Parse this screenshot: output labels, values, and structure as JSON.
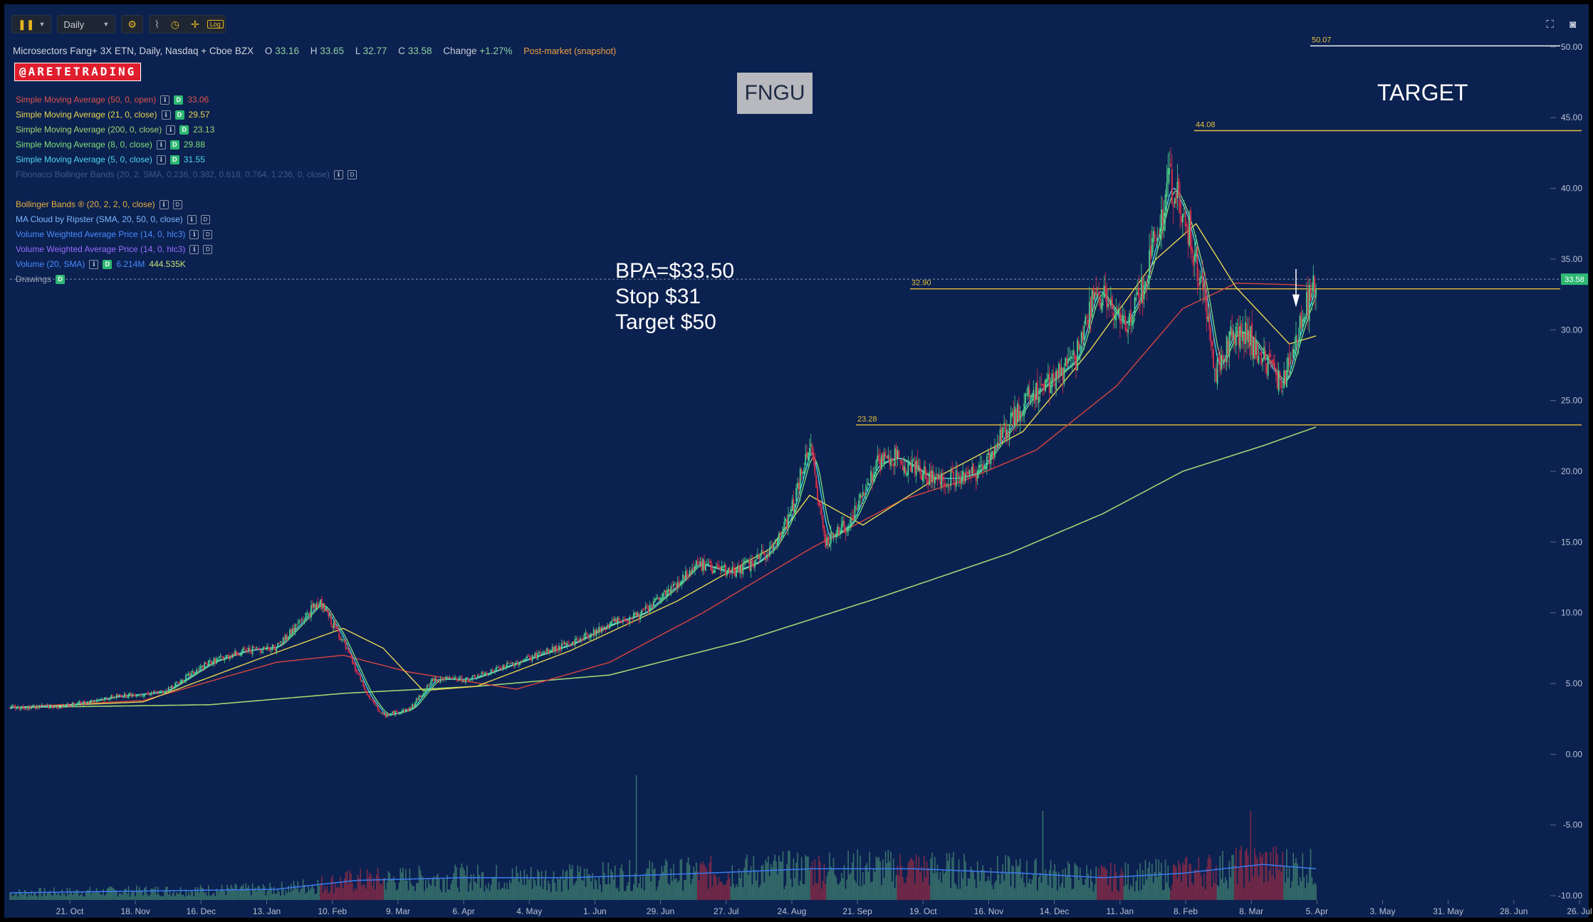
{
  "toolbar": {
    "interval": "Daily",
    "log_label": "Log"
  },
  "header": {
    "title": "Microsectors Fang+ 3X ETN, Daily, Nasdaq + Cboe BZX",
    "open_label": "O",
    "open": "33.16",
    "high_label": "H",
    "high": "33.65",
    "low_label": "L",
    "low": "32.77",
    "close_label": "C",
    "close": "33.58",
    "change_label": "Change",
    "change": "+1.27%",
    "post_market": "Post-market (snapshot)"
  },
  "brand": "@ARETETRADING",
  "legend": [
    {
      "label": "Simple Moving Average (50, 0, open)",
      "value": "33.06",
      "color": "#e0524a",
      "d": true
    },
    {
      "label": "Simple Moving Average (21, 0, close)",
      "value": "29.57",
      "color": "#e8d650",
      "d": true
    },
    {
      "label": "Simple Moving Average (200, 0, close)",
      "value": "23.13",
      "color": "#9fd672",
      "d": true
    },
    {
      "label": "Simple Moving Average (8, 0, close)",
      "value": "29.88",
      "color": "#7fe07a",
      "d": true
    },
    {
      "label": "Simple Moving Average (5, 0, close)",
      "value": "31.55",
      "color": "#4fd6f0",
      "d": true
    },
    {
      "label": "Fibonacci Bollinger Bands (20, 2, SMA, 0.236, 0.382, 0.618, 0.764, 1.236, 0, close)",
      "value": "",
      "color": "#3a5a8a",
      "d": false
    },
    {
      "label": "",
      "value": "",
      "color": "#24407a",
      "d": false
    },
    {
      "label": "Bollinger Bands ® (20, 2, 2, 0, close)",
      "value": "",
      "color": "#e8b040",
      "d": false
    },
    {
      "label": "MA Cloud by Ripster (SMA, 20, 50, 0, close)",
      "value": "",
      "color": "#7cb8ff",
      "d": false
    },
    {
      "label": "Volume Weighted Average Price (14, 0, hlc3)",
      "value": "",
      "color": "#4a8cff",
      "d": false
    },
    {
      "label": "Volume Weighted Average Price (14, 0, hlc3)",
      "value": "",
      "color": "#9a6cff",
      "d": false
    },
    {
      "label": "Volume (20, SMA)",
      "value": "6.214M",
      "value2": "444.535K",
      "color": "#4a8cff",
      "d": true
    },
    {
      "label": "Drawings",
      "value": "",
      "color": "#9aa3b5",
      "d": true
    }
  ],
  "annotations": {
    "ticker": "FNGU",
    "target_title": "TARGET",
    "plan_lines": [
      "BPA=$33.50",
      "Stop $31",
      "Target $50"
    ]
  },
  "chart_data": {
    "type": "candlestick",
    "symbol": "FNGU",
    "interval": "Daily",
    "ylim": [
      -10.5,
      51
    ],
    "y_ticks": [
      "50.00",
      "45.00",
      "40.00",
      "35.00",
      "30.00",
      "25.00",
      "20.00",
      "15.00",
      "10.00",
      "5.00",
      "0.00",
      "-5.00",
      "-10.00"
    ],
    "x_ticks": [
      "21. Oct",
      "18. Nov",
      "16. Dec",
      "13. Jan",
      "10. Feb",
      "9. Mar",
      "6. Apr",
      "4. May",
      "1. Jun",
      "29. Jun",
      "27. Jul",
      "24. Aug",
      "21. Sep",
      "19. Oct",
      "16. Nov",
      "14. Dec",
      "11. Jan",
      "8. Feb",
      "8. Mar",
      "5. Apr",
      "3. May",
      "31. May",
      "28. Jun",
      "26. Jul"
    ],
    "price_path": [
      [
        0,
        3.3
      ],
      [
        40,
        3.4
      ],
      [
        80,
        4.1
      ],
      [
        115,
        4.4
      ],
      [
        150,
        6.5
      ],
      [
        175,
        7.3
      ],
      [
        200,
        7.6
      ],
      [
        232,
        10.8
      ],
      [
        248,
        8.3
      ],
      [
        268,
        4.2
      ],
      [
        280,
        2.7
      ],
      [
        300,
        3.2
      ],
      [
        318,
        5.3
      ],
      [
        345,
        5.3
      ],
      [
        380,
        6.5
      ],
      [
        420,
        7.8
      ],
      [
        450,
        9.2
      ],
      [
        475,
        10.0
      ],
      [
        500,
        12.0
      ],
      [
        515,
        13.5
      ],
      [
        540,
        12.8
      ],
      [
        560,
        13.6
      ],
      [
        572,
        14.6
      ],
      [
        585,
        16.8
      ],
      [
        600,
        21.9
      ],
      [
        612,
        15.1
      ],
      [
        630,
        16.3
      ],
      [
        650,
        20.5
      ],
      [
        665,
        21.0
      ],
      [
        690,
        19.5
      ],
      [
        710,
        19.5
      ],
      [
        725,
        19.9
      ],
      [
        745,
        22.5
      ],
      [
        765,
        25.3
      ],
      [
        785,
        26.8
      ],
      [
        800,
        28.0
      ],
      [
        815,
        33.0
      ],
      [
        835,
        30.2
      ],
      [
        850,
        33.0
      ],
      [
        870,
        40.4
      ],
      [
        882,
        38.0
      ],
      [
        895,
        33.0
      ],
      [
        905,
        27.0
      ],
      [
        918,
        30.0
      ],
      [
        930,
        29.5
      ],
      [
        945,
        27.3
      ],
      [
        955,
        26.0
      ],
      [
        968,
        30.3
      ],
      [
        980,
        33.5
      ]
    ],
    "sma_50_path": [
      [
        0,
        3.3
      ],
      [
        100,
        3.8
      ],
      [
        200,
        6.5
      ],
      [
        250,
        7.0
      ],
      [
        300,
        5.8
      ],
      [
        380,
        4.6
      ],
      [
        450,
        6.5
      ],
      [
        520,
        10.0
      ],
      [
        600,
        14.5
      ],
      [
        670,
        18.0
      ],
      [
        720,
        19.5
      ],
      [
        770,
        21.5
      ],
      [
        830,
        26.0
      ],
      [
        880,
        31.5
      ],
      [
        920,
        33.3
      ],
      [
        960,
        33.2
      ],
      [
        980,
        33.06
      ]
    ],
    "sma_21_path": [
      [
        0,
        3.3
      ],
      [
        100,
        3.7
      ],
      [
        200,
        7.2
      ],
      [
        250,
        8.9
      ],
      [
        280,
        7.5
      ],
      [
        310,
        4.5
      ],
      [
        350,
        4.8
      ],
      [
        420,
        7.3
      ],
      [
        500,
        10.8
      ],
      [
        570,
        14.5
      ],
      [
        600,
        18.3
      ],
      [
        640,
        16.2
      ],
      [
        700,
        19.8
      ],
      [
        760,
        22.8
      ],
      [
        810,
        28.5
      ],
      [
        860,
        35.0
      ],
      [
        890,
        37.5
      ],
      [
        920,
        33.0
      ],
      [
        960,
        29.0
      ],
      [
        980,
        29.57
      ]
    ],
    "sma_200_path": [
      [
        0,
        3.3
      ],
      [
        150,
        3.5
      ],
      [
        250,
        4.3
      ],
      [
        350,
        4.8
      ],
      [
        450,
        5.6
      ],
      [
        550,
        8.0
      ],
      [
        650,
        11.0
      ],
      [
        750,
        14.2
      ],
      [
        820,
        17.0
      ],
      [
        880,
        20.0
      ],
      [
        940,
        21.8
      ],
      [
        980,
        23.13
      ]
    ],
    "sma_8_value": 29.88,
    "sma_5_value": 31.55,
    "horizontal_levels": [
      {
        "label": "50.07",
        "value": 50.07,
        "color": "#ffffff",
        "note": "TARGET"
      },
      {
        "label": "44.08",
        "value": 44.08,
        "color": "#e8c13a"
      },
      {
        "label": "32.90",
        "value": 32.9,
        "color": "#e8c13a"
      },
      {
        "label": "23.28",
        "value": 23.28,
        "color": "#e8c13a"
      }
    ],
    "last_price": 33.58,
    "last_price_label": "33.58",
    "volume_info": {
      "volume": "6.214M",
      "volume_sma": "444.535K"
    }
  }
}
